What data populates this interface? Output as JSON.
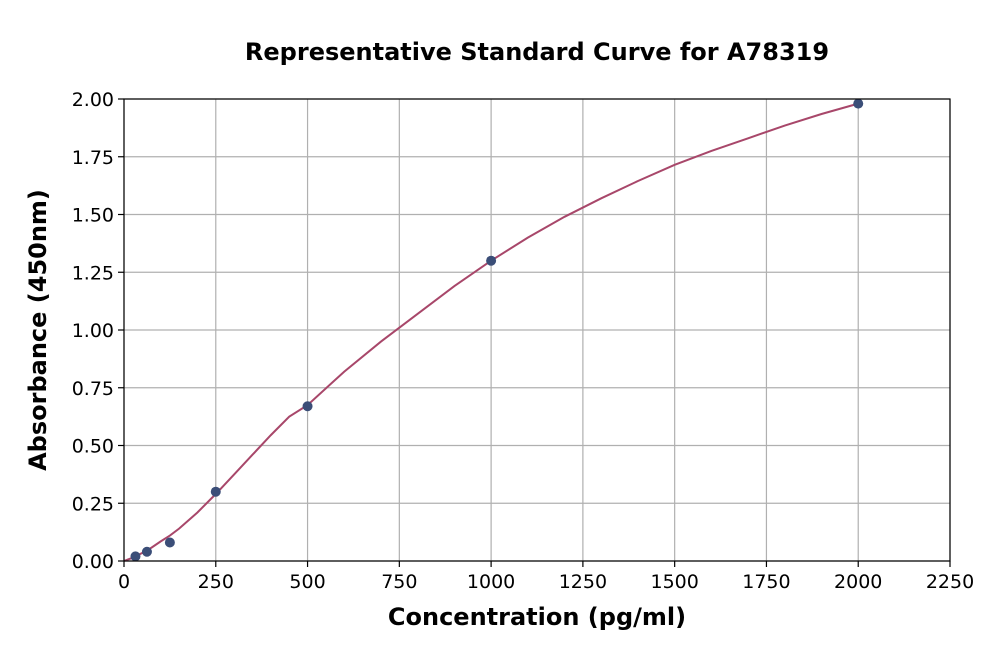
{
  "chart_data": {
    "type": "scatter",
    "title": "Representative Standard Curve for A78319",
    "xlabel": "Concentration (pg/ml)",
    "ylabel": "Absorbance (450nm)",
    "xlim": [
      0,
      2250
    ],
    "ylim": [
      0,
      2.0
    ],
    "x_ticks": [
      "0",
      "250",
      "500",
      "750",
      "1000",
      "1250",
      "1500",
      "1750",
      "2000",
      "2250"
    ],
    "y_ticks": [
      "0.00",
      "0.25",
      "0.50",
      "0.75",
      "1.00",
      "1.25",
      "1.50",
      "1.75",
      "2.00"
    ],
    "grid": true,
    "series": [
      {
        "points": [
          {
            "x": 31.25,
            "y": 0.02
          },
          {
            "x": 62.5,
            "y": 0.04
          },
          {
            "x": 125,
            "y": 0.08
          },
          {
            "x": 250,
            "y": 0.3
          },
          {
            "x": 500,
            "y": 0.67
          },
          {
            "x": 1000,
            "y": 1.3
          },
          {
            "x": 2000,
            "y": 1.98
          }
        ],
        "marker_color": "#3b4e78"
      }
    ],
    "fit_curve": {
      "points": [
        [
          0,
          0.0
        ],
        [
          25,
          0.015
        ],
        [
          50,
          0.035
        ],
        [
          75,
          0.058
        ],
        [
          100,
          0.085
        ],
        [
          125,
          0.11
        ],
        [
          150,
          0.14
        ],
        [
          200,
          0.21
        ],
        [
          250,
          0.29
        ],
        [
          300,
          0.375
        ],
        [
          350,
          0.46
        ],
        [
          400,
          0.545
        ],
        [
          450,
          0.625
        ],
        [
          500,
          0.675
        ],
        [
          600,
          0.82
        ],
        [
          700,
          0.95
        ],
        [
          800,
          1.07
        ],
        [
          900,
          1.19
        ],
        [
          1000,
          1.3
        ],
        [
          1100,
          1.4
        ],
        [
          1200,
          1.49
        ],
        [
          1300,
          1.57
        ],
        [
          1400,
          1.645
        ],
        [
          1500,
          1.715
        ],
        [
          1600,
          1.775
        ],
        [
          1700,
          1.83
        ],
        [
          1800,
          1.885
        ],
        [
          1900,
          1.935
        ],
        [
          2000,
          1.98
        ]
      ],
      "color": "#a8476a"
    }
  }
}
